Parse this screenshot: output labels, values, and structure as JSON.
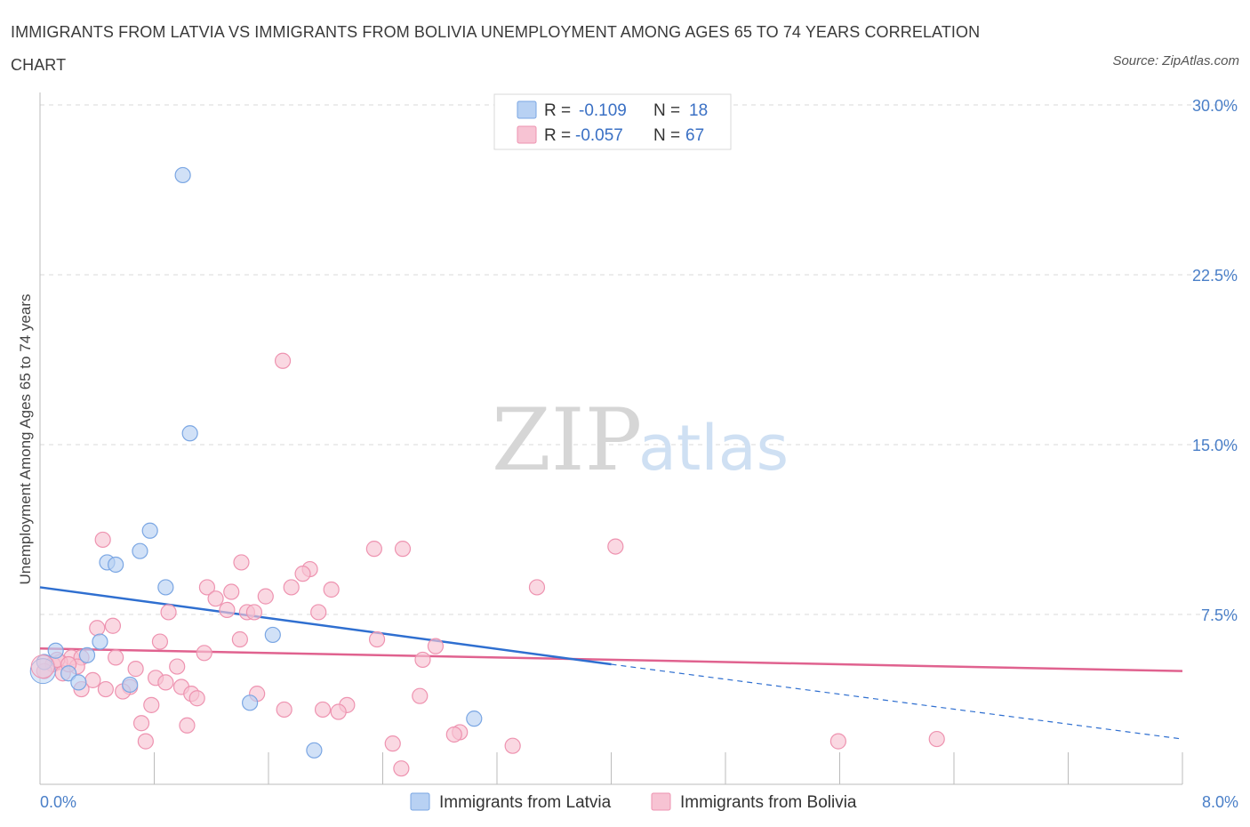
{
  "title": "IMMIGRANTS FROM LATVIA VS IMMIGRANTS FROM BOLIVIA UNEMPLOYMENT AMONG AGES 65 TO 74 YEARS CORRELATION CHART",
  "source": "Source: ZipAtlas.com",
  "watermark": {
    "zip": "ZIP",
    "atlas": "atlas"
  },
  "colors": {
    "latvia_fill": "#b8d1f3",
    "latvia_stroke": "#7aa6e3",
    "latvia_line": "#2f6fd0",
    "bolivia_fill": "#f7c3d3",
    "bolivia_stroke": "#ee93b0",
    "bolivia_line": "#e0628f",
    "grid": "#d9d9d9",
    "axis_label": "#4a7fc8"
  },
  "legend": {
    "rows": [
      {
        "r_label": "R =",
        "r_value": "-0.109",
        "n_label": "N =",
        "n_value": "18"
      },
      {
        "r_label": "R =",
        "r_value": "-0.057",
        "n_label": "N =",
        "n_value": "67"
      }
    ]
  },
  "chart_data": {
    "type": "scatter",
    "title": "IMMIGRANTS FROM LATVIA VS IMMIGRANTS FROM BOLIVIA UNEMPLOYMENT AMONG AGES 65 TO 74 YEARS CORRELATION CHART",
    "xlabel": "",
    "ylabel": "Unemployment Among Ages 65 to 74 years",
    "xlim": [
      0,
      8
    ],
    "ylim": [
      0,
      30
    ],
    "x_tick_labels": [
      "0.0%",
      "8.0%"
    ],
    "y_ticks": [
      7.5,
      15,
      22.5,
      30
    ],
    "y_tick_labels": [
      "7.5%",
      "15.0%",
      "22.5%",
      "30.0%"
    ],
    "legend_position": "top-center",
    "series": [
      {
        "name": "Immigrants from Latvia",
        "r": -0.109,
        "n": 18,
        "trend": {
          "x0": 0,
          "y0": 8.7,
          "x1": 4.0,
          "y1": 5.3,
          "dashed_to_x": 8.0,
          "dashed_to_y": 2.0
        },
        "points": [
          {
            "x": 1.0,
            "y": 26.9
          },
          {
            "x": 1.05,
            "y": 15.5
          },
          {
            "x": 0.77,
            "y": 11.2
          },
          {
            "x": 0.7,
            "y": 10.3
          },
          {
            "x": 0.47,
            "y": 9.8
          },
          {
            "x": 0.53,
            "y": 9.7
          },
          {
            "x": 0.88,
            "y": 8.7
          },
          {
            "x": 1.63,
            "y": 6.6
          },
          {
            "x": 0.42,
            "y": 6.3
          },
          {
            "x": 0.11,
            "y": 5.9
          },
          {
            "x": 0.33,
            "y": 5.7
          },
          {
            "x": 0.03,
            "y": 5.4
          },
          {
            "x": 0.2,
            "y": 4.9
          },
          {
            "x": 0.27,
            "y": 4.5
          },
          {
            "x": 0.63,
            "y": 4.4
          },
          {
            "x": 1.47,
            "y": 3.6
          },
          {
            "x": 3.04,
            "y": 2.9
          },
          {
            "x": 1.92,
            "y": 1.5
          }
        ]
      },
      {
        "name": "Immigrants from Bolivia",
        "r": -0.057,
        "n": 67,
        "trend": {
          "x0": 0,
          "y0": 6.0,
          "x1": 8.0,
          "y1": 5.0
        },
        "points": [
          {
            "x": 1.7,
            "y": 18.7
          },
          {
            "x": 0.44,
            "y": 10.8
          },
          {
            "x": 2.34,
            "y": 10.4
          },
          {
            "x": 2.54,
            "y": 10.4
          },
          {
            "x": 4.03,
            "y": 10.5
          },
          {
            "x": 1.41,
            "y": 9.8
          },
          {
            "x": 1.89,
            "y": 9.5
          },
          {
            "x": 1.84,
            "y": 9.3
          },
          {
            "x": 1.17,
            "y": 8.7
          },
          {
            "x": 1.34,
            "y": 8.5
          },
          {
            "x": 1.76,
            "y": 8.7
          },
          {
            "x": 2.04,
            "y": 8.6
          },
          {
            "x": 3.48,
            "y": 8.7
          },
          {
            "x": 1.58,
            "y": 8.3
          },
          {
            "x": 1.23,
            "y": 8.2
          },
          {
            "x": 0.9,
            "y": 7.6
          },
          {
            "x": 1.31,
            "y": 7.7
          },
          {
            "x": 1.45,
            "y": 7.6
          },
          {
            "x": 1.5,
            "y": 7.6
          },
          {
            "x": 1.95,
            "y": 7.6
          },
          {
            "x": 0.51,
            "y": 7.0
          },
          {
            "x": 0.4,
            "y": 6.9
          },
          {
            "x": 1.4,
            "y": 6.4
          },
          {
            "x": 2.36,
            "y": 6.4
          },
          {
            "x": 0.84,
            "y": 6.3
          },
          {
            "x": 2.77,
            "y": 6.1
          },
          {
            "x": 1.15,
            "y": 5.8
          },
          {
            "x": 0.53,
            "y": 5.6
          },
          {
            "x": 2.68,
            "y": 5.5
          },
          {
            "x": 0.22,
            "y": 5.6
          },
          {
            "x": 0.29,
            "y": 5.6
          },
          {
            "x": 0.14,
            "y": 5.4
          },
          {
            "x": 0.26,
            "y": 5.2
          },
          {
            "x": 0.67,
            "y": 5.1
          },
          {
            "x": 0.96,
            "y": 5.2
          },
          {
            "x": 0.09,
            "y": 5.3
          },
          {
            "x": 0.03,
            "y": 5.0
          },
          {
            "x": 0.16,
            "y": 4.9
          },
          {
            "x": 0.81,
            "y": 4.7
          },
          {
            "x": 0.37,
            "y": 4.6
          },
          {
            "x": 0.88,
            "y": 4.5
          },
          {
            "x": 0.63,
            "y": 4.3
          },
          {
            "x": 0.99,
            "y": 4.3
          },
          {
            "x": 0.29,
            "y": 4.2
          },
          {
            "x": 0.46,
            "y": 4.2
          },
          {
            "x": 0.58,
            "y": 4.1
          },
          {
            "x": 1.06,
            "y": 4.0
          },
          {
            "x": 1.1,
            "y": 3.8
          },
          {
            "x": 1.52,
            "y": 4.0
          },
          {
            "x": 2.66,
            "y": 3.9
          },
          {
            "x": 0.78,
            "y": 3.5
          },
          {
            "x": 1.71,
            "y": 3.3
          },
          {
            "x": 1.98,
            "y": 3.3
          },
          {
            "x": 2.15,
            "y": 3.5
          },
          {
            "x": 2.09,
            "y": 3.2
          },
          {
            "x": 0.71,
            "y": 2.7
          },
          {
            "x": 1.03,
            "y": 2.6
          },
          {
            "x": 2.94,
            "y": 2.3
          },
          {
            "x": 2.9,
            "y": 2.2
          },
          {
            "x": 0.74,
            "y": 1.9
          },
          {
            "x": 2.47,
            "y": 1.8
          },
          {
            "x": 3.31,
            "y": 1.7
          },
          {
            "x": 5.59,
            "y": 1.9
          },
          {
            "x": 6.28,
            "y": 2.0
          },
          {
            "x": 2.53,
            "y": 0.7
          },
          {
            "x": 0.12,
            "y": 5.5
          },
          {
            "x": 0.2,
            "y": 5.3
          }
        ]
      }
    ]
  }
}
